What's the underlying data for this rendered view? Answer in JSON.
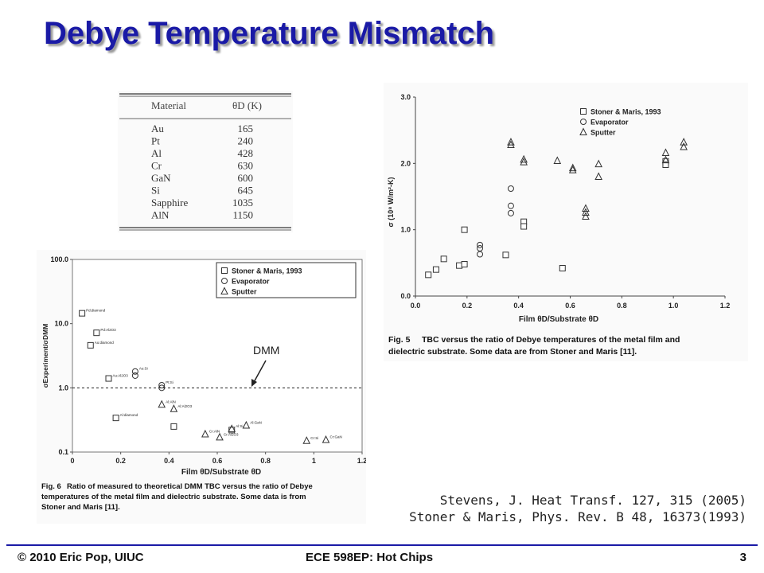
{
  "slide": {
    "title": "Debye Temperature Mismatch",
    "colors": {
      "title": "#1a1aa6",
      "footer_rule": "#1a1aa6"
    }
  },
  "table": {
    "header_material": "Material",
    "header_theta": "θD (K)",
    "rows": [
      {
        "material": "Au",
        "theta": "165"
      },
      {
        "material": "Pt",
        "theta": "240"
      },
      {
        "material": "Al",
        "theta": "428"
      },
      {
        "material": "Cr",
        "theta": "630"
      },
      {
        "material": "GaN",
        "theta": "600"
      },
      {
        "material": "Si",
        "theta": "645"
      },
      {
        "material": "Sapphire",
        "theta": "1035"
      },
      {
        "material": "AlN",
        "theta": "1150"
      }
    ]
  },
  "fig6": {
    "caption_label": "Fig. 6",
    "caption_lines": [
      "Ratio of measured to theoretical DMM TBC versus the ratio of Debye",
      "temperatures of the metal film and dielectric substrate. Some data is from",
      "Stoner and Maris [11]."
    ],
    "annotation": "DMM"
  },
  "fig5": {
    "caption_label": "Fig. 5",
    "caption_lines": [
      "TBC versus the ratio of Debye temperatures of the metal film and",
      "dielectric substrate. Some data are from Stoner and Maris [11]."
    ]
  },
  "citation": {
    "line1": "Stevens, J. Heat Transf. 127, 315 (2005)",
    "line2": "Stoner & Maris, Phys. Rev. B 48, 16373(1993)"
  },
  "footer": {
    "left": "© 2010 Eric Pop, UIUC",
    "center": "ECE 598EP: Hot Chips",
    "page": "3"
  },
  "chart_data": [
    {
      "type": "scatter",
      "id": "fig6",
      "xlabel": "Film θD/Substrate θD",
      "ylabel": "σExperiment/σDMM",
      "xlim": [
        0,
        1.2
      ],
      "ylim": [
        0.1,
        100
      ],
      "yscale": "log",
      "xticks": [
        "0",
        "0.2",
        "0.4",
        "0.6",
        "0.8",
        "1",
        "1.2"
      ],
      "yticks": [
        "0.1",
        "1.0",
        "10.0",
        "100.0"
      ],
      "reference_line": {
        "y": 1.0,
        "style": "dashed",
        "label": "DMM"
      },
      "legend": {
        "position": "top-right",
        "entries": [
          "Stoner & Maris, 1993",
          "Evaporator",
          "Sputter"
        ]
      },
      "series": [
        {
          "name": "Stoner & Maris, 1993",
          "marker": "square",
          "points": [
            {
              "x": 0.04,
              "y": 14.5,
              "label": "Pd:diamond"
            },
            {
              "x": 0.1,
              "y": 7.2,
              "label": "Pd:Al2O3"
            },
            {
              "x": 0.075,
              "y": 4.6,
              "label": "Au:diamond"
            },
            {
              "x": 0.15,
              "y": 1.4,
              "label": "Au:Al2O3"
            },
            {
              "x": 0.18,
              "y": 0.34,
              "label": "Al:diamond"
            },
            {
              "x": 0.42,
              "y": 0.25,
              "label": ""
            },
            {
              "x": 0.66,
              "y": 0.22,
              "label": ""
            }
          ]
        },
        {
          "name": "Evaporator",
          "marker": "circle",
          "points": [
            {
              "x": 0.26,
              "y": 1.8,
              "label": "Au:Si"
            },
            {
              "x": 0.26,
              "y": 1.55,
              "label": ""
            },
            {
              "x": 0.37,
              "y": 1.1,
              "label": "Pt:Si"
            },
            {
              "x": 0.37,
              "y": 1.0,
              "label": ""
            }
          ]
        },
        {
          "name": "Sputter",
          "marker": "triangle",
          "points": [
            {
              "x": 0.37,
              "y": 0.55,
              "label": "Al:AlN"
            },
            {
              "x": 0.42,
              "y": 0.47,
              "label": "Al:Al2O3"
            },
            {
              "x": 0.55,
              "y": 0.19,
              "label": "Cr:AlN"
            },
            {
              "x": 0.61,
              "y": 0.17,
              "label": "Cr:Al2O3"
            },
            {
              "x": 0.66,
              "y": 0.23,
              "label": "Al:Si"
            },
            {
              "x": 0.72,
              "y": 0.26,
              "label": "Al:GaN"
            },
            {
              "x": 0.97,
              "y": 0.15,
              "label": "Cr:Si"
            },
            {
              "x": 1.05,
              "y": 0.155,
              "label": "Cr:GaN"
            }
          ]
        }
      ]
    },
    {
      "type": "scatter",
      "id": "fig5",
      "xlabel": "Film θD/Substrate θD",
      "ylabel": "σ (10⁸ W/m²-K)",
      "xlim": [
        0,
        1.2
      ],
      "ylim": [
        0,
        3
      ],
      "xticks": [
        "0.0",
        "0.2",
        "0.4",
        "0.6",
        "0.8",
        "1.0",
        "1.2"
      ],
      "yticks": [
        "0.0",
        "1.0",
        "2.0",
        "3.0"
      ],
      "legend": {
        "position": "top-right",
        "entries": [
          "Stoner & Maris, 1993",
          "Evaporator",
          "Sputter"
        ]
      },
      "series": [
        {
          "name": "Stoner & Maris, 1993",
          "marker": "square",
          "points": [
            {
              "x": 0.05,
              "y": 0.32
            },
            {
              "x": 0.08,
              "y": 0.4
            },
            {
              "x": 0.11,
              "y": 0.56
            },
            {
              "x": 0.17,
              "y": 0.46
            },
            {
              "x": 0.19,
              "y": 1.0
            },
            {
              "x": 0.19,
              "y": 0.48
            },
            {
              "x": 0.35,
              "y": 0.62
            },
            {
              "x": 0.42,
              "y": 1.12
            },
            {
              "x": 0.42,
              "y": 1.05
            },
            {
              "x": 0.57,
              "y": 0.42
            },
            {
              "x": 0.97,
              "y": 2.03
            },
            {
              "x": 0.97,
              "y": 1.98
            }
          ]
        },
        {
          "name": "Evaporator",
          "marker": "circle",
          "points": [
            {
              "x": 0.25,
              "y": 0.77
            },
            {
              "x": 0.25,
              "y": 0.72
            },
            {
              "x": 0.25,
              "y": 0.63
            },
            {
              "x": 0.37,
              "y": 1.62
            },
            {
              "x": 0.37,
              "y": 1.36
            },
            {
              "x": 0.37,
              "y": 1.25
            }
          ]
        },
        {
          "name": "Sputter",
          "marker": "triangle",
          "points": [
            {
              "x": 0.37,
              "y": 2.32
            },
            {
              "x": 0.37,
              "y": 2.28
            },
            {
              "x": 0.42,
              "y": 2.06
            },
            {
              "x": 0.42,
              "y": 2.02
            },
            {
              "x": 0.55,
              "y": 2.04
            },
            {
              "x": 0.61,
              "y": 1.93
            },
            {
              "x": 0.61,
              "y": 1.9
            },
            {
              "x": 0.66,
              "y": 1.32
            },
            {
              "x": 0.66,
              "y": 1.26
            },
            {
              "x": 0.66,
              "y": 1.2
            },
            {
              "x": 0.71,
              "y": 1.99
            },
            {
              "x": 0.71,
              "y": 1.8
            },
            {
              "x": 0.97,
              "y": 2.16
            },
            {
              "x": 0.97,
              "y": 2.05
            },
            {
              "x": 1.04,
              "y": 2.32
            },
            {
              "x": 1.04,
              "y": 2.25
            }
          ]
        }
      ]
    }
  ]
}
